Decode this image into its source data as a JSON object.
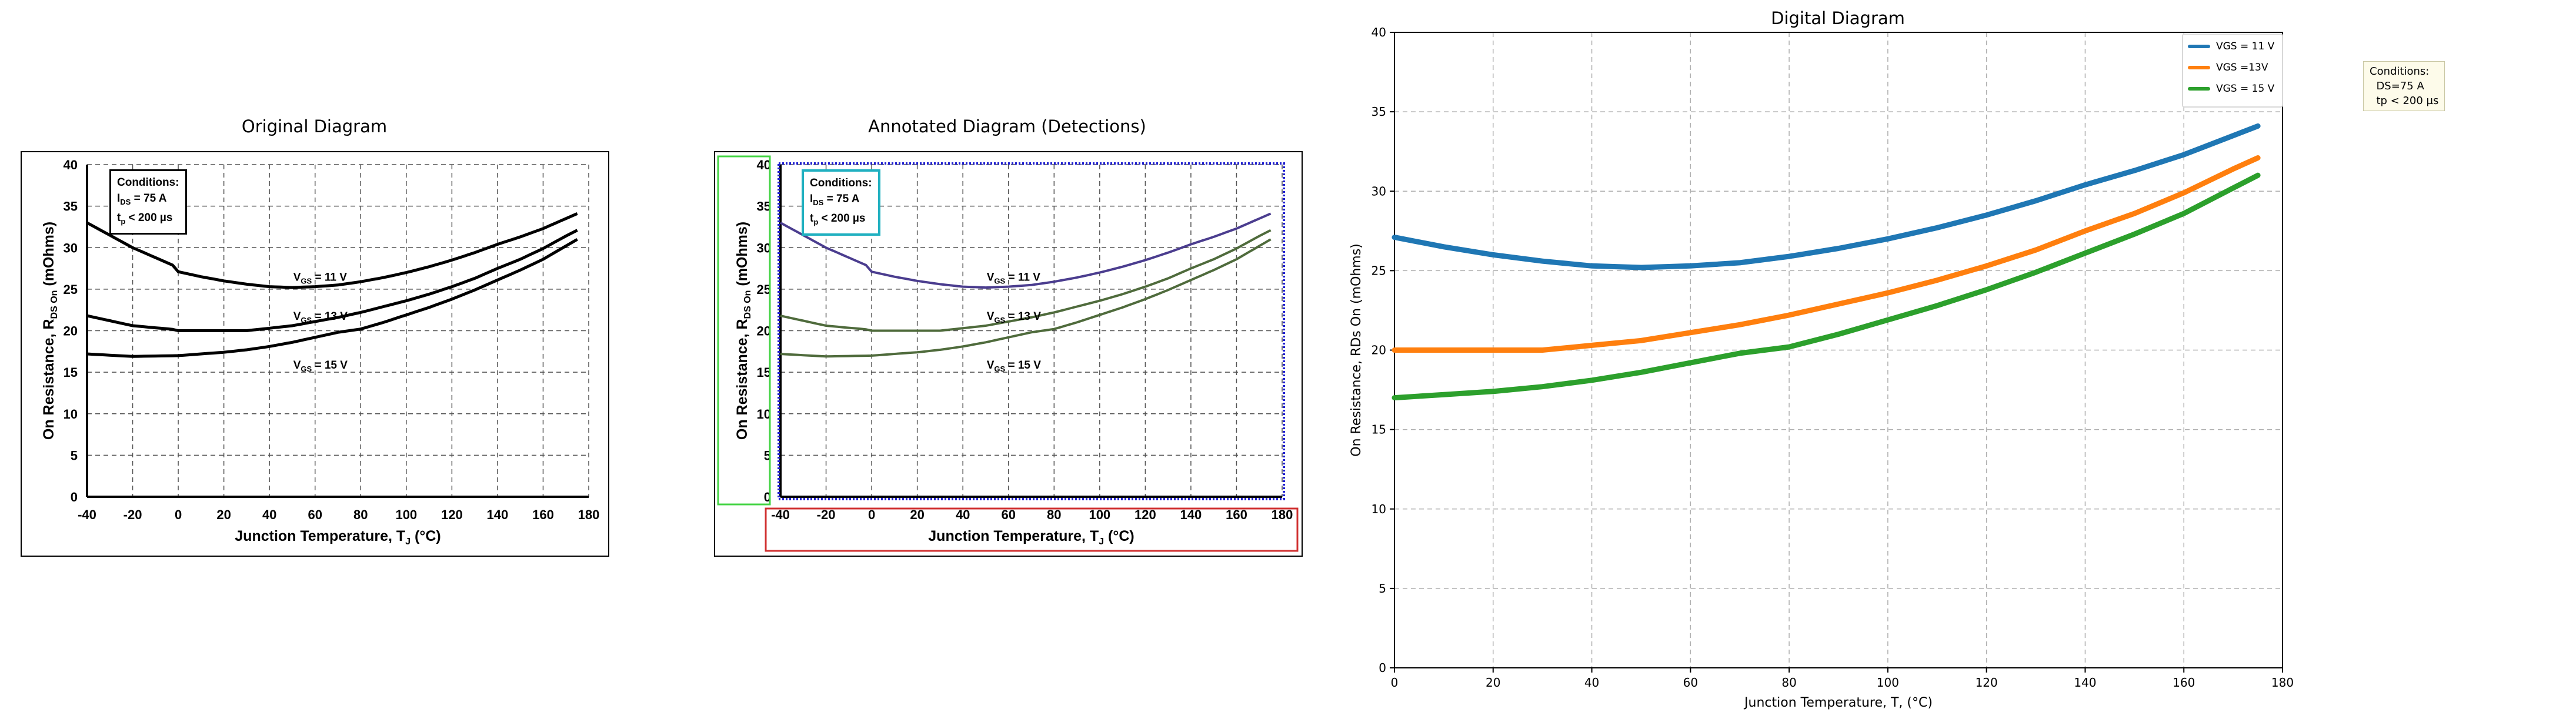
{
  "panels": {
    "original_title": "Original Diagram",
    "annotated_title": "Annotated Diagram (Detections)",
    "digital_title": "Digital Diagram"
  },
  "source_chart": {
    "ylabel": "On Resistance, R",
    "ylabel_sub": "DS On",
    "ylabel_unit": " (mOhms)",
    "xlabel": "Junction Temperature, T",
    "xlabel_sub": "J",
    "xlabel_unit": " (°C)",
    "conditions_title": "Conditions:",
    "conditions_line1": "I",
    "conditions_line1_sub": "DS",
    "conditions_line1_rest": " = 75 A",
    "conditions_line2": "t",
    "conditions_line2_sub": "p",
    "conditions_line2_rest": " < 200 µs",
    "curve_labels": [
      {
        "prefix": "V",
        "sub": "GS",
        "rest": " = 11 V"
      },
      {
        "prefix": "V",
        "sub": "GS",
        "rest": " = 13 V"
      },
      {
        "prefix": "V",
        "sub": "GS",
        "rest": " = 15 V"
      }
    ],
    "x_ticks": [
      -40,
      -20,
      0,
      20,
      40,
      60,
      80,
      100,
      120,
      140,
      160,
      180
    ],
    "y_ticks": [
      0,
      5,
      10,
      15,
      20,
      25,
      30,
      35,
      40
    ],
    "colors": {
      "curves": "#000000",
      "annotated_curve_1": "#4b3d8f",
      "annotated_curve_2": "#4f6b3c",
      "annotated_curve_3": "#4f6b3c",
      "box_green": "#44d444",
      "box_blue": "#2020d0",
      "box_red": "#d03030",
      "box_cyan": "#20b0c0"
    }
  },
  "digital": {
    "legend": [
      "VGS = 11 V",
      "VGS =13V",
      "VGS = 15 V"
    ],
    "conditions_note": "Conditions:\n  DS=75 A\n  tp < 200 µs",
    "colors": {
      "s11": "#1f77b4",
      "s13": "#ff7f0e",
      "s15": "#2ca02c",
      "grid": "#b0b0b0"
    }
  },
  "chart_data": {
    "type": "line",
    "title": "Digital Diagram",
    "xlabel": "Junction Temperature, T, (°C)",
    "ylabel": "On Resistance, RDs On (mOhms)",
    "xlim": [
      0,
      180
    ],
    "ylim": [
      0,
      40
    ],
    "x_ticks": [
      0,
      20,
      40,
      60,
      80,
      100,
      120,
      140,
      160,
      180
    ],
    "y_ticks": [
      0,
      5,
      10,
      15,
      20,
      25,
      30,
      35,
      40
    ],
    "grid": true,
    "legend_position": "top-right",
    "series": [
      {
        "name": "VGS = 11 V",
        "x": [
          0,
          10,
          20,
          30,
          40,
          50,
          60,
          70,
          80,
          90,
          100,
          110,
          120,
          130,
          140,
          150,
          160,
          170,
          175
        ],
        "y": [
          27.1,
          26.5,
          26.0,
          25.6,
          25.3,
          25.2,
          25.3,
          25.5,
          25.9,
          26.4,
          27.0,
          27.7,
          28.5,
          29.4,
          30.4,
          31.3,
          32.3,
          33.5,
          34.1
        ]
      },
      {
        "name": "VGS =13V",
        "x": [
          0,
          10,
          20,
          30,
          40,
          50,
          60,
          70,
          80,
          90,
          100,
          110,
          120,
          130,
          140,
          150,
          160,
          170,
          175
        ],
        "y": [
          20.0,
          20.0,
          20.0,
          20.0,
          20.3,
          20.6,
          21.1,
          21.6,
          22.2,
          22.9,
          23.6,
          24.4,
          25.3,
          26.3,
          27.5,
          28.6,
          29.9,
          31.4,
          32.1
        ]
      },
      {
        "name": "VGS = 15 V",
        "x": [
          0,
          10,
          20,
          30,
          40,
          50,
          60,
          70,
          80,
          90,
          100,
          110,
          120,
          130,
          140,
          150,
          160,
          170,
          175
        ],
        "y": [
          17.0,
          17.2,
          17.4,
          17.7,
          18.1,
          18.6,
          19.2,
          19.8,
          20.2,
          21.0,
          21.9,
          22.8,
          23.8,
          24.9,
          26.1,
          27.3,
          28.6,
          30.2,
          31.0
        ]
      }
    ]
  }
}
